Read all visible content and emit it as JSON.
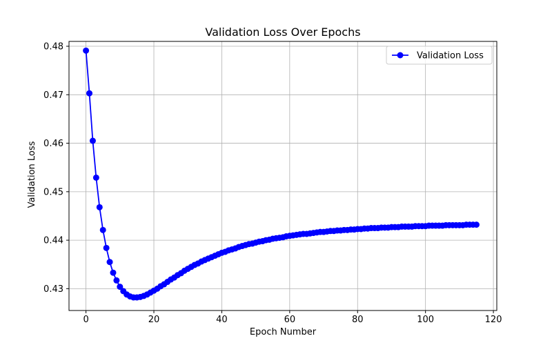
{
  "chart_data": {
    "type": "line",
    "title": "Validation Loss Over Epochs",
    "xlabel": "Epoch Number",
    "ylabel": "Validation Loss",
    "xlim": [
      -5,
      121
    ],
    "ylim": [
      0.4255,
      0.481
    ],
    "xticks": [
      0,
      20,
      40,
      60,
      80,
      100,
      120
    ],
    "yticks": [
      0.43,
      0.44,
      0.45,
      0.46,
      0.47,
      0.48
    ],
    "xtick_labels": [
      "0",
      "20",
      "40",
      "60",
      "80",
      "100",
      "120"
    ],
    "ytick_labels": [
      "0.43",
      "0.44",
      "0.45",
      "0.46",
      "0.47",
      "0.48"
    ],
    "grid": true,
    "legend": {
      "placement": "top-right"
    },
    "series": [
      {
        "name": "Validation Loss",
        "color": "#0000ff",
        "marker": "circle",
        "x": [
          0,
          1,
          2,
          3,
          4,
          5,
          6,
          7,
          8,
          9,
          10,
          11,
          12,
          13,
          14,
          15,
          16,
          17,
          18,
          19,
          20,
          21,
          22,
          23,
          24,
          25,
          26,
          27,
          28,
          29,
          30,
          31,
          32,
          33,
          34,
          35,
          36,
          37,
          38,
          39,
          40,
          41,
          42,
          43,
          44,
          45,
          46,
          47,
          48,
          49,
          50,
          51,
          52,
          53,
          54,
          55,
          56,
          57,
          58,
          59,
          60,
          61,
          62,
          63,
          64,
          65,
          66,
          67,
          68,
          69,
          70,
          71,
          72,
          73,
          74,
          75,
          76,
          77,
          78,
          79,
          80,
          81,
          82,
          83,
          84,
          85,
          86,
          87,
          88,
          89,
          90,
          91,
          92,
          93,
          94,
          95,
          96,
          97,
          98,
          99,
          100,
          101,
          102,
          103,
          104,
          105,
          106,
          107,
          108,
          109,
          110,
          111,
          112,
          113,
          114,
          115
        ],
        "values": [
          0.4791,
          0.4703,
          0.4605,
          0.4529,
          0.4468,
          0.4421,
          0.4384,
          0.4355,
          0.4333,
          0.4317,
          0.4304,
          0.4295,
          0.4288,
          0.4284,
          0.4282,
          0.4282,
          0.4283,
          0.4285,
          0.4288,
          0.4292,
          0.4296,
          0.43,
          0.4305,
          0.4309,
          0.4314,
          0.4319,
          0.4323,
          0.4328,
          0.4332,
          0.4337,
          0.4341,
          0.4345,
          0.4349,
          0.4352,
          0.4356,
          0.4359,
          0.4362,
          0.4365,
          0.4368,
          0.4371,
          0.4374,
          0.4376,
          0.4379,
          0.4381,
          0.4383,
          0.4386,
          0.4388,
          0.439,
          0.4392,
          0.4393,
          0.4395,
          0.4397,
          0.4398,
          0.44,
          0.4401,
          0.4403,
          0.4404,
          0.4405,
          0.4406,
          0.4408,
          0.4409,
          0.441,
          0.4411,
          0.4412,
          0.4413,
          0.4413,
          0.4414,
          0.4415,
          0.4416,
          0.4417,
          0.4417,
          0.4418,
          0.4419,
          0.4419,
          0.442,
          0.442,
          0.4421,
          0.4421,
          0.4422,
          0.4422,
          0.4423,
          0.4423,
          0.4424,
          0.4424,
          0.4425,
          0.4425,
          0.4425,
          0.4426,
          0.4426,
          0.4426,
          0.4427,
          0.4427,
          0.4427,
          0.4428,
          0.4428,
          0.4428,
          0.4428,
          0.4429,
          0.4429,
          0.4429,
          0.4429,
          0.443,
          0.443,
          0.443,
          0.443,
          0.443,
          0.4431,
          0.4431,
          0.4431,
          0.4431,
          0.4431,
          0.4431,
          0.4432,
          0.4432,
          0.4432,
          0.4432
        ]
      }
    ]
  }
}
